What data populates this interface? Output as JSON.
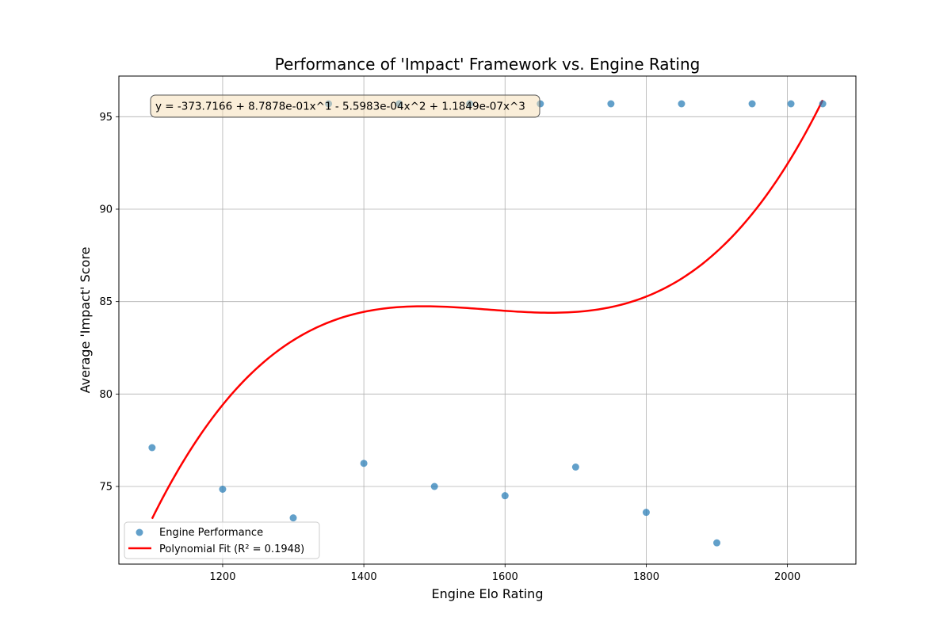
{
  "chart_data": {
    "type": "scatter",
    "title": "Performance of 'Impact' Framework vs. Engine Rating",
    "xlabel": "Engine Elo Rating",
    "ylabel": "Average 'Impact' Score",
    "xlim": [
      1053,
      2097
    ],
    "ylim": [
      70.8,
      97.2
    ],
    "xticks": [
      1200,
      1400,
      1600,
      1800,
      2000
    ],
    "yticks": [
      75,
      80,
      85,
      90,
      95
    ],
    "grid": true,
    "legend_position": "lower-left",
    "series": [
      {
        "name": "Engine Performance",
        "kind": "scatter",
        "color": "#1f77b4",
        "points": [
          {
            "x": 1100,
            "y": 77.1
          },
          {
            "x": 1200,
            "y": 74.85
          },
          {
            "x": 1300,
            "y": 73.3
          },
          {
            "x": 1350,
            "y": 95.7
          },
          {
            "x": 1400,
            "y": 76.25
          },
          {
            "x": 1450,
            "y": 95.7
          },
          {
            "x": 1500,
            "y": 75.0
          },
          {
            "x": 1550,
            "y": 95.7
          },
          {
            "x": 1600,
            "y": 74.5
          },
          {
            "x": 1650,
            "y": 95.7
          },
          {
            "x": 1700,
            "y": 76.05
          },
          {
            "x": 1750,
            "y": 95.7
          },
          {
            "x": 1800,
            "y": 73.6
          },
          {
            "x": 1850,
            "y": 95.7
          },
          {
            "x": 1900,
            "y": 71.95
          },
          {
            "x": 1950,
            "y": 95.7
          },
          {
            "x": 2005,
            "y": 95.7
          },
          {
            "x": 2050,
            "y": 95.7
          }
        ]
      },
      {
        "name": "Polynomial Fit (R² = 0.1948)",
        "kind": "line",
        "color": "#ff0000",
        "coefficients": [
          -373.7166,
          0.87878,
          -0.00055983,
          1.1849e-07
        ],
        "x_range": [
          1100,
          2050
        ]
      }
    ],
    "annotations": [
      {
        "text": "y = -373.7166 + 8.7878e-01x^1 - 5.5983e-04x^2 + 1.1849e-07x^3"
      }
    ]
  }
}
